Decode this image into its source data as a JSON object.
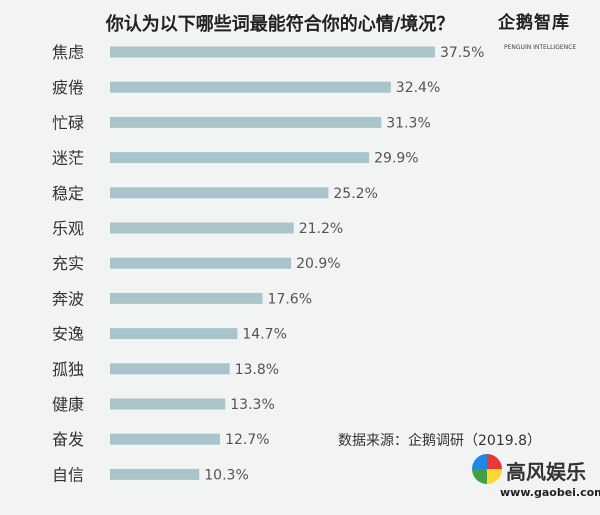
{
  "chart_data": {
    "type": "bar",
    "orientation": "horizontal",
    "title": "你认为以下哪些词最能符合你的心情/境况？",
    "categories": [
      "焦虑",
      "疲倦",
      "忙碌",
      "迷茫",
      "稳定",
      "乐观",
      "充实",
      "奔波",
      "安逸",
      "孤独",
      "健康",
      "奋发",
      "自信"
    ],
    "values": [
      37.5,
      32.4,
      31.3,
      29.9,
      25.2,
      21.2,
      20.9,
      17.6,
      14.7,
      13.8,
      13.3,
      12.7,
      10.3
    ],
    "value_labels": [
      "37.5%",
      "32.4%",
      "31.3%",
      "29.9%",
      "25.2%",
      "21.2%",
      "20.9%",
      "17.6%",
      "14.7%",
      "13.8%",
      "13.3%",
      "12.7%",
      "10.3%"
    ],
    "unit": "%",
    "xlim": [
      0,
      40
    ],
    "bar_color": "#a9c4cb",
    "grid": false,
    "legend": "none"
  },
  "source_note": "数据来源：企鹅调研（2019.8）",
  "logo": {
    "name": "企鹅智库",
    "tagline": "PENGUIN INTELLIGENCE"
  },
  "watermark": {
    "text": "高风娱乐",
    "url": "www.gaobei.com"
  }
}
